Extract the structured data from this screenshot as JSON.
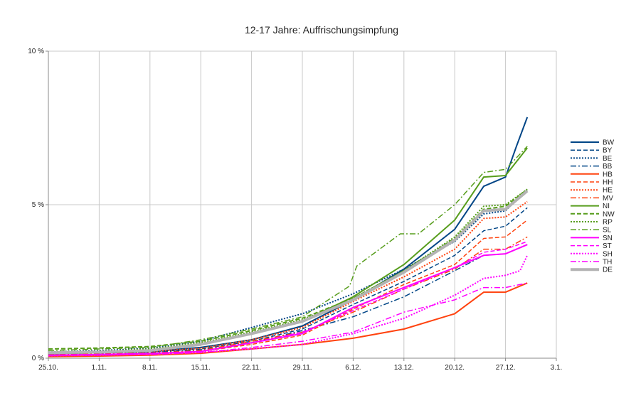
{
  "chart_data": {
    "type": "line",
    "title": "12-17 Jahre: Auffrischungsimpfung",
    "xlabel": "",
    "ylabel": "",
    "x_start": "25.10.",
    "x_tick_labels": [
      "25.10.",
      "1.11.",
      "8.11.",
      "15.11.",
      "22.11.",
      "29.11.",
      "6.12.",
      "13.12.",
      "20.12.",
      "27.12.",
      "3.1."
    ],
    "x_day_range": [
      0,
      70
    ],
    "y_ticks": [
      0,
      5,
      10
    ],
    "y_tick_labels": [
      "0 %",
      "5 %",
      "10 %"
    ],
    "ylim": [
      0,
      10
    ],
    "grid": true,
    "legend_position": "right",
    "series": [
      {
        "name": "BW",
        "color": "#004586",
        "dash": "solid",
        "width": 2,
        "points": [
          [
            0,
            0.15
          ],
          [
            7,
            0.18
          ],
          [
            14,
            0.22
          ],
          [
            21,
            0.35
          ],
          [
            28,
            0.6
          ],
          [
            35,
            1.05
          ],
          [
            42,
            1.9
          ],
          [
            49,
            2.9
          ],
          [
            56,
            4.2
          ],
          [
            60,
            5.6
          ],
          [
            63,
            5.9
          ],
          [
            64.5,
            6.9
          ],
          [
            66,
            7.85
          ]
        ]
      },
      {
        "name": "BY",
        "color": "#004586",
        "dash": "6,3",
        "width": 1.5,
        "points": [
          [
            0,
            0.15
          ],
          [
            7,
            0.17
          ],
          [
            14,
            0.2
          ],
          [
            21,
            0.3
          ],
          [
            28,
            0.55
          ],
          [
            35,
            0.95
          ],
          [
            42,
            1.75
          ],
          [
            49,
            2.5
          ],
          [
            56,
            3.35
          ],
          [
            60,
            4.15
          ],
          [
            63,
            4.3
          ],
          [
            66,
            4.9
          ]
        ]
      },
      {
        "name": "BE",
        "color": "#004586",
        "dash": "2,2",
        "width": 2,
        "points": [
          [
            0,
            0.2
          ],
          [
            7,
            0.25
          ],
          [
            14,
            0.32
          ],
          [
            21,
            0.55
          ],
          [
            28,
            1.0
          ],
          [
            35,
            1.45
          ],
          [
            42,
            2.1
          ],
          [
            49,
            2.9
          ],
          [
            56,
            3.8
          ],
          [
            60,
            4.7
          ],
          [
            63,
            4.8
          ],
          [
            66,
            5.5
          ]
        ]
      },
      {
        "name": "BB",
        "color": "#004586",
        "dash": "8,3,2,3",
        "width": 1.5,
        "points": [
          [
            0,
            0.12
          ],
          [
            7,
            0.14
          ],
          [
            14,
            0.18
          ],
          [
            21,
            0.28
          ],
          [
            28,
            0.5
          ],
          [
            35,
            0.9
          ],
          [
            42,
            1.35
          ],
          [
            49,
            2.0
          ],
          [
            56,
            2.85
          ],
          [
            60,
            3.35
          ],
          [
            63,
            3.4
          ],
          [
            66,
            3.7
          ]
        ]
      },
      {
        "name": "HB",
        "color": "#ff420e",
        "dash": "solid",
        "width": 2,
        "points": [
          [
            0,
            0.05
          ],
          [
            7,
            0.07
          ],
          [
            14,
            0.1
          ],
          [
            21,
            0.16
          ],
          [
            28,
            0.3
          ],
          [
            35,
            0.45
          ],
          [
            42,
            0.65
          ],
          [
            49,
            0.95
          ],
          [
            56,
            1.45
          ],
          [
            60,
            2.15
          ],
          [
            63,
            2.15
          ],
          [
            66,
            2.45
          ]
        ]
      },
      {
        "name": "HH",
        "color": "#ff420e",
        "dash": "6,3",
        "width": 1.5,
        "points": [
          [
            0,
            0.1
          ],
          [
            7,
            0.12
          ],
          [
            14,
            0.15
          ],
          [
            21,
            0.22
          ],
          [
            28,
            0.45
          ],
          [
            35,
            0.75
          ],
          [
            42,
            1.6
          ],
          [
            49,
            2.4
          ],
          [
            56,
            3.05
          ],
          [
            60,
            3.9
          ],
          [
            63,
            3.95
          ],
          [
            66,
            4.5
          ]
        ]
      },
      {
        "name": "HE",
        "color": "#ff420e",
        "dash": "2,2",
        "width": 2,
        "points": [
          [
            0,
            0.15
          ],
          [
            7,
            0.18
          ],
          [
            14,
            0.22
          ],
          [
            21,
            0.32
          ],
          [
            28,
            0.6
          ],
          [
            35,
            1.0
          ],
          [
            42,
            1.85
          ],
          [
            49,
            2.65
          ],
          [
            56,
            3.55
          ],
          [
            60,
            4.55
          ],
          [
            63,
            4.6
          ],
          [
            66,
            5.1
          ]
        ]
      },
      {
        "name": "MV",
        "color": "#ff420e",
        "dash": "8,3,2,3",
        "width": 1.5,
        "points": [
          [
            0,
            0.12
          ],
          [
            7,
            0.14
          ],
          [
            14,
            0.17
          ],
          [
            21,
            0.25
          ],
          [
            28,
            0.55
          ],
          [
            35,
            0.85
          ],
          [
            42,
            1.5
          ],
          [
            49,
            2.25
          ],
          [
            56,
            2.9
          ],
          [
            60,
            3.55
          ],
          [
            63,
            3.55
          ],
          [
            66,
            3.95
          ]
        ]
      },
      {
        "name": "NI",
        "color": "#579d1c",
        "dash": "solid",
        "width": 2,
        "points": [
          [
            0,
            0.15
          ],
          [
            7,
            0.18
          ],
          [
            14,
            0.25
          ],
          [
            21,
            0.45
          ],
          [
            28,
            0.8
          ],
          [
            35,
            1.2
          ],
          [
            42,
            2.0
          ],
          [
            49,
            3.05
          ],
          [
            56,
            4.5
          ],
          [
            60,
            5.9
          ],
          [
            63,
            5.95
          ],
          [
            66,
            6.85
          ]
        ]
      },
      {
        "name": "NW",
        "color": "#579d1c",
        "dash": "6,3",
        "width": 2,
        "points": [
          [
            0,
            0.3
          ],
          [
            7,
            0.33
          ],
          [
            14,
            0.38
          ],
          [
            21,
            0.55
          ],
          [
            28,
            0.9
          ],
          [
            35,
            1.3
          ],
          [
            42,
            1.95
          ],
          [
            49,
            2.85
          ],
          [
            56,
            3.9
          ],
          [
            60,
            4.85
          ],
          [
            63,
            4.95
          ],
          [
            66,
            5.5
          ]
        ]
      },
      {
        "name": "RP",
        "color": "#579d1c",
        "dash": "2,2",
        "width": 2,
        "points": [
          [
            0,
            0.2
          ],
          [
            7,
            0.23
          ],
          [
            14,
            0.3
          ],
          [
            21,
            0.5
          ],
          [
            28,
            0.85
          ],
          [
            35,
            1.25
          ],
          [
            42,
            1.95
          ],
          [
            49,
            2.85
          ],
          [
            56,
            3.95
          ],
          [
            60,
            4.95
          ],
          [
            63,
            5.0
          ],
          [
            66,
            5.5
          ]
        ]
      },
      {
        "name": "SL",
        "color": "#579d1c",
        "dash": "8,3,2,3",
        "width": 1.5,
        "points": [
          [
            0,
            0.25
          ],
          [
            7,
            0.3
          ],
          [
            14,
            0.35
          ],
          [
            21,
            0.6
          ],
          [
            28,
            0.95
          ],
          [
            35,
            1.35
          ],
          [
            41.5,
            2.35
          ],
          [
            42.5,
            3.0
          ],
          [
            48.5,
            4.05
          ],
          [
            51,
            4.05
          ],
          [
            56,
            5.0
          ],
          [
            60,
            6.05
          ],
          [
            63,
            6.15
          ],
          [
            66,
            6.9
          ]
        ]
      },
      {
        "name": "SN",
        "color": "#ff00ff",
        "dash": "solid",
        "width": 2,
        "points": [
          [
            0,
            0.1
          ],
          [
            7,
            0.12
          ],
          [
            14,
            0.15
          ],
          [
            21,
            0.22
          ],
          [
            28,
            0.5
          ],
          [
            35,
            0.8
          ],
          [
            42,
            1.65
          ],
          [
            49,
            2.3
          ],
          [
            56,
            2.95
          ],
          [
            60,
            3.35
          ],
          [
            63,
            3.4
          ],
          [
            66,
            3.7
          ]
        ]
      },
      {
        "name": "ST",
        "color": "#ff00ff",
        "dash": "6,3",
        "width": 1.5,
        "points": [
          [
            0,
            0.1
          ],
          [
            7,
            0.12
          ],
          [
            14,
            0.15
          ],
          [
            21,
            0.22
          ],
          [
            28,
            0.5
          ],
          [
            35,
            0.85
          ],
          [
            42,
            1.55
          ],
          [
            49,
            2.25
          ],
          [
            56,
            2.95
          ],
          [
            60,
            3.45
          ],
          [
            63,
            3.55
          ],
          [
            66,
            3.8
          ]
        ]
      },
      {
        "name": "SH",
        "color": "#ff00ff",
        "dash": "2,2",
        "width": 2,
        "points": [
          [
            0,
            0.08
          ],
          [
            7,
            0.1
          ],
          [
            14,
            0.13
          ],
          [
            21,
            0.2
          ],
          [
            28,
            0.3
          ],
          [
            35,
            0.45
          ],
          [
            42,
            0.8
          ],
          [
            49,
            1.3
          ],
          [
            56,
            2.05
          ],
          [
            60,
            2.6
          ],
          [
            63,
            2.7
          ],
          [
            65,
            2.85
          ],
          [
            66,
            3.35
          ]
        ]
      },
      {
        "name": "TH",
        "color": "#ff00ff",
        "dash": "8,3,2,3",
        "width": 1.5,
        "points": [
          [
            0,
            0.08
          ],
          [
            7,
            0.1
          ],
          [
            14,
            0.12
          ],
          [
            21,
            0.18
          ],
          [
            28,
            0.35
          ],
          [
            35,
            0.55
          ],
          [
            42,
            0.85
          ],
          [
            49,
            1.5
          ],
          [
            56,
            1.9
          ],
          [
            60,
            2.3
          ],
          [
            63,
            2.3
          ],
          [
            66,
            2.45
          ]
        ]
      },
      {
        "name": "DE",
        "color": "#b3b3b3",
        "dash": "solid",
        "width": 4,
        "points": [
          [
            0,
            0.18
          ],
          [
            7,
            0.2
          ],
          [
            14,
            0.25
          ],
          [
            21,
            0.45
          ],
          [
            28,
            0.8
          ],
          [
            35,
            1.2
          ],
          [
            42,
            1.9
          ],
          [
            49,
            2.8
          ],
          [
            56,
            3.85
          ],
          [
            60,
            4.8
          ],
          [
            63,
            4.85
          ],
          [
            66,
            5.45
          ]
        ]
      }
    ]
  }
}
